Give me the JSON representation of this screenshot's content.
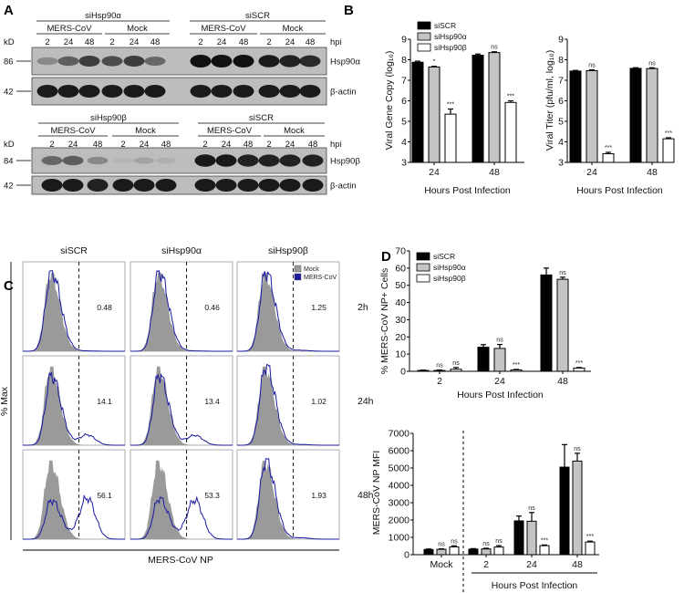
{
  "panels": {
    "A": "A",
    "B": "B",
    "C": "C",
    "D": "D"
  },
  "blot_a": {
    "kd_label": "kD",
    "hpi_label": "hpi",
    "top": {
      "groups": [
        "siHsp90α",
        "siSCR"
      ],
      "subgroups": [
        "MERS-CoV",
        "Mock",
        "MERS-CoV",
        "Mock"
      ],
      "lanes": [
        "2",
        "24",
        "48",
        "2",
        "24",
        "48",
        "2",
        "24",
        "48",
        "2",
        "24",
        "48"
      ],
      "target_label": "Hsp90α",
      "target_kd": "86",
      "control_label": "β-actin",
      "control_kd": "42",
      "target_band_intensity": [
        0.3,
        0.55,
        0.75,
        0.65,
        0.75,
        0.5,
        1,
        1,
        1,
        0.95,
        0.9,
        0.85
      ],
      "control_band_intensity": [
        0.95,
        0.95,
        0.95,
        0.95,
        0.95,
        0.95,
        0.95,
        0.95,
        0.95,
        0.95,
        0.95,
        0.95
      ]
    },
    "bottom": {
      "groups": [
        "siHsp90β",
        "siSCR"
      ],
      "subgroups": [
        "MERS-CoV",
        "Mock",
        "MERS-CoV",
        "Mock"
      ],
      "lanes": [
        "2",
        "24",
        "48",
        "2",
        "24",
        "48",
        "2",
        "24",
        "48",
        "2",
        "24",
        "48"
      ],
      "target_label": "Hsp90β",
      "target_kd": "84",
      "control_label": "β-actin",
      "control_kd": "42",
      "target_band_intensity": [
        0.5,
        0.55,
        0.3,
        0.05,
        0.15,
        0.08,
        0.95,
        0.95,
        0.9,
        0.9,
        0.9,
        0.9
      ],
      "control_band_intensity": [
        0.95,
        0.95,
        0.9,
        0.95,
        0.95,
        0.95,
        0.95,
        0.95,
        0.95,
        0.95,
        0.95,
        0.95
      ]
    }
  },
  "flow_c": {
    "columns": [
      "siSCR",
      "siHsp90α",
      "siHsp90β"
    ],
    "rows": [
      "2h",
      "24h",
      "48h"
    ],
    "percent_positive": [
      [
        "0.48",
        "0.46",
        "1.25"
      ],
      [
        "14.1",
        "13.4",
        "1.02"
      ],
      [
        "56.1",
        "53.3",
        "1.93"
      ]
    ],
    "ylabel": "% Max",
    "xlabel": "MERS-CoV NP",
    "legend": [
      {
        "name": "Mock",
        "color": "#9a9a9a"
      },
      {
        "name": "MERS-CoV",
        "color": "#1a1aa0"
      }
    ]
  },
  "chart_data": [
    {
      "id": "B-left",
      "type": "bar",
      "categories": [
        "24",
        "48"
      ],
      "xlabel": "Hours Post Infection",
      "ylabel": "Viral Gene Copy (log₁₀)",
      "ylim": [
        3,
        9
      ],
      "yticks": [
        "3",
        "4",
        "5",
        "6",
        "7",
        "8",
        "9"
      ],
      "legend": "top-left",
      "series": [
        {
          "name": "siSCR",
          "color": "#000000",
          "values": [
            7.88,
            8.22
          ],
          "errors": [
            0.05,
            0.06
          ],
          "sig": [
            "",
            ""
          ]
        },
        {
          "name": "siHsp90α",
          "color": "#c4c4c4",
          "values": [
            7.65,
            8.35
          ],
          "errors": [
            0.03,
            0.04
          ],
          "sig": [
            "*",
            "ns"
          ]
        },
        {
          "name": "siHsp90β",
          "color": "#ffffff",
          "values": [
            5.35,
            5.92
          ],
          "errors": [
            0.25,
            0.08
          ],
          "sig": [
            "***",
            "***"
          ]
        }
      ]
    },
    {
      "id": "B-right",
      "type": "bar",
      "categories": [
        "24",
        "48"
      ],
      "xlabel": "Hours Post Infection",
      "ylabel": "Viral Titer (pfu/ml, log₁₀)",
      "ylim": [
        3,
        9
      ],
      "yticks": [
        "3",
        "4",
        "5",
        "6",
        "7",
        "8",
        "9"
      ],
      "series": [
        {
          "color": "#000000",
          "values": [
            7.45,
            7.58
          ],
          "errors": [
            0.03,
            0.03
          ],
          "sig": [
            "",
            ""
          ]
        },
        {
          "color": "#c4c4c4",
          "values": [
            7.47,
            7.57
          ],
          "errors": [
            0.04,
            0.04
          ],
          "sig": [
            "ns",
            "ns"
          ]
        },
        {
          "color": "#ffffff",
          "values": [
            3.42,
            4.15
          ],
          "errors": [
            0.07,
            0.05
          ],
          "sig": [
            "***",
            "***"
          ]
        }
      ]
    },
    {
      "id": "D-top",
      "type": "bar",
      "categories": [
        "2",
        "24",
        "48"
      ],
      "xlabel": "Hours Post Infection",
      "ylabel": "% MERS-CoV NP+ Cells",
      "ylim": [
        0,
        70
      ],
      "yticks": [
        "0",
        "10",
        "20",
        "30",
        "40",
        "50",
        "60",
        "70"
      ],
      "legend": "top-left",
      "series": [
        {
          "name": "siSCR",
          "color": "#000000",
          "values": [
            0.5,
            14,
            56
          ],
          "errors": [
            0.2,
            1.5,
            4
          ],
          "sig": [
            "",
            "",
            ""
          ]
        },
        {
          "name": "siHsp90α",
          "color": "#c4c4c4",
          "values": [
            0.5,
            13.3,
            53.5
          ],
          "errors": [
            0.3,
            2.3,
            1.2
          ],
          "sig": [
            "ns",
            "ns",
            "ns"
          ]
        },
        {
          "name": "siHsp90β",
          "color": "#ffffff",
          "values": [
            1.2,
            0.8,
            1.9
          ],
          "errors": [
            1.0,
            0.3,
            0.3
          ],
          "sig": [
            "ns",
            "***",
            "***"
          ]
        }
      ]
    },
    {
      "id": "D-bottom",
      "type": "bar",
      "categories": [
        "Mock",
        "2",
        "24",
        "48"
      ],
      "xlabel": "Hours Post Infection",
      "ylabel": "MERS-CoV NP MFI",
      "ylim": [
        0,
        7000
      ],
      "yticks": [
        "0",
        "1000",
        "2000",
        "3000",
        "4000",
        "5000",
        "6000",
        "7000"
      ],
      "series": [
        {
          "color": "#000000",
          "values": [
            300,
            320,
            1950,
            5050
          ],
          "errors": [
            30,
            30,
            280,
            1300
          ],
          "sig": [
            "",
            "",
            "",
            ""
          ]
        },
        {
          "color": "#c4c4c4",
          "values": [
            310,
            330,
            1930,
            5400
          ],
          "errors": [
            30,
            40,
            500,
            450
          ],
          "sig": [
            "ns",
            "ns",
            "ns",
            "ns"
          ]
        },
        {
          "color": "#ffffff",
          "values": [
            450,
            440,
            520,
            730
          ],
          "errors": [
            60,
            80,
            40,
            50
          ],
          "sig": [
            "ns",
            "ns",
            "***",
            "***"
          ]
        }
      ]
    }
  ]
}
